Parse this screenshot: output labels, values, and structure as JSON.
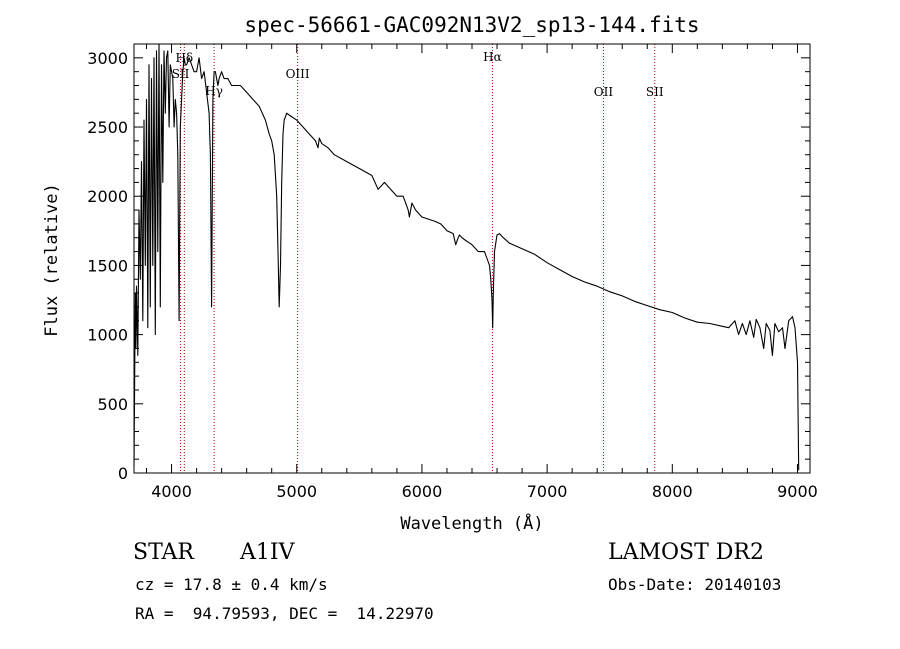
{
  "chart_data": {
    "type": "line",
    "title": "spec-56661-GAC092N13V2_sp13-144.fits",
    "xlabel": "Wavelength (Å)",
    "ylabel": "Flux (relative)",
    "xlim": [
      3700,
      9100
    ],
    "ylim": [
      0,
      3100
    ],
    "xticks": [
      4000,
      5000,
      6000,
      7000,
      8000,
      9000
    ],
    "yticks": [
      0,
      500,
      1000,
      1500,
      2000,
      2500,
      3000
    ],
    "grid": false,
    "series": [
      {
        "values_x": [
          3700,
          3710,
          3715,
          3720,
          3730,
          3740,
          3750,
          3760,
          3770,
          3780,
          3790,
          3800,
          3810,
          3820,
          3830,
          3840,
          3850,
          3860,
          3870,
          3880,
          3890,
          3900,
          3910,
          3920,
          3930,
          3940,
          3950,
          3960,
          3970,
          3980,
          3990,
          4000,
          4010,
          4020,
          4030,
          4040,
          4050,
          4060,
          4070,
          4080,
          4090,
          4100,
          4110,
          4120,
          4140,
          4160,
          4180,
          4200,
          4220,
          4240,
          4260,
          4280,
          4300,
          4310,
          4320,
          4330,
          4340,
          4345,
          4350,
          4360,
          4370,
          4380,
          4400,
          4420,
          4450,
          4480,
          4500,
          4550,
          4600,
          4650,
          4700,
          4750,
          4780,
          4800,
          4820,
          4840,
          4850,
          4860,
          4870,
          4880,
          4890,
          4900,
          4920,
          4950,
          5000,
          5050,
          5100,
          5150,
          5170,
          5180,
          5200,
          5250,
          5300,
          5400,
          5500,
          5600,
          5650,
          5680,
          5700,
          5750,
          5800,
          5850,
          5870,
          5890,
          5900,
          5920,
          5950,
          6000,
          6100,
          6150,
          6200,
          6250,
          6270,
          6290,
          6300,
          6320,
          6350,
          6400,
          6450,
          6500,
          6520,
          6540,
          6550,
          6560,
          6565,
          6570,
          6580,
          6600,
          6620,
          6650,
          6700,
          6800,
          6900,
          7000,
          7100,
          7200,
          7300,
          7400,
          7500,
          7600,
          7700,
          7800,
          7900,
          8000,
          8100,
          8200,
          8300,
          8400,
          8450,
          8500,
          8530,
          8560,
          8590,
          8620,
          8650,
          8670,
          8700,
          8730,
          8750,
          8780,
          8800,
          8820,
          8850,
          8880,
          8900,
          8930,
          8960,
          8980,
          9000,
          9010
        ],
        "values_y": [
          50,
          1300,
          900,
          1350,
          850,
          1900,
          1400,
          2250,
          1100,
          2550,
          1500,
          2700,
          1050,
          2950,
          1200,
          2850,
          1500,
          3000,
          1000,
          3050,
          1600,
          3100,
          1200,
          2950,
          2100,
          3050,
          2600,
          3000,
          3050,
          2500,
          2950,
          2900,
          2850,
          2500,
          2700,
          2600,
          2300,
          1100,
          2500,
          2700,
          2900,
          3000,
          2950,
          2950,
          3000,
          2950,
          2900,
          2900,
          3000,
          2850,
          2900,
          2750,
          2600,
          2300,
          1200,
          2700,
          2900,
          2900,
          2900,
          2850,
          2800,
          2850,
          2900,
          2850,
          2850,
          2800,
          2800,
          2800,
          2750,
          2700,
          2650,
          2550,
          2450,
          2400,
          2300,
          2000,
          1600,
          1200,
          1500,
          2100,
          2450,
          2550,
          2600,
          2580,
          2550,
          2500,
          2450,
          2400,
          2350,
          2420,
          2380,
          2350,
          2300,
          2250,
          2200,
          2150,
          2050,
          2080,
          2100,
          2050,
          2000,
          2000,
          1950,
          1900,
          1850,
          1950,
          1900,
          1850,
          1820,
          1800,
          1750,
          1730,
          1650,
          1700,
          1720,
          1700,
          1680,
          1650,
          1600,
          1600,
          1550,
          1500,
          1400,
          1250,
          1050,
          1300,
          1600,
          1720,
          1730,
          1700,
          1660,
          1620,
          1580,
          1520,
          1470,
          1420,
          1380,
          1350,
          1310,
          1280,
          1240,
          1210,
          1180,
          1160,
          1120,
          1090,
          1080,
          1060,
          1050,
          1100,
          1000,
          1080,
          1000,
          1100,
          980,
          1110,
          1050,
          900,
          1080,
          1030,
          850,
          1080,
          1020,
          1050,
          900,
          1100,
          1130,
          1050,
          800,
          20
        ]
      }
    ],
    "annotations": [
      {
        "label": "SII",
        "x": 4072
      },
      {
        "label": "Hδ",
        "x": 4102
      },
      {
        "label": "Hγ",
        "x": 4340
      },
      {
        "label": "OIII",
        "x": 5007
      },
      {
        "label": "Hα",
        "x": 6563
      },
      {
        "label": "OII",
        "x": 7450
      },
      {
        "label": "SII",
        "x": 7860
      }
    ]
  },
  "info": {
    "class": "STAR",
    "subclass": "A1IV",
    "survey": "LAMOST DR2",
    "cz": "cz = 17.8 ± 0.4 km/s",
    "obsdate": "Obs-Date: 20140103",
    "coords": "RA =  94.79593, DEC =  14.22970"
  },
  "colors": {
    "spectrum": "#000000",
    "marker": "#b00000"
  }
}
